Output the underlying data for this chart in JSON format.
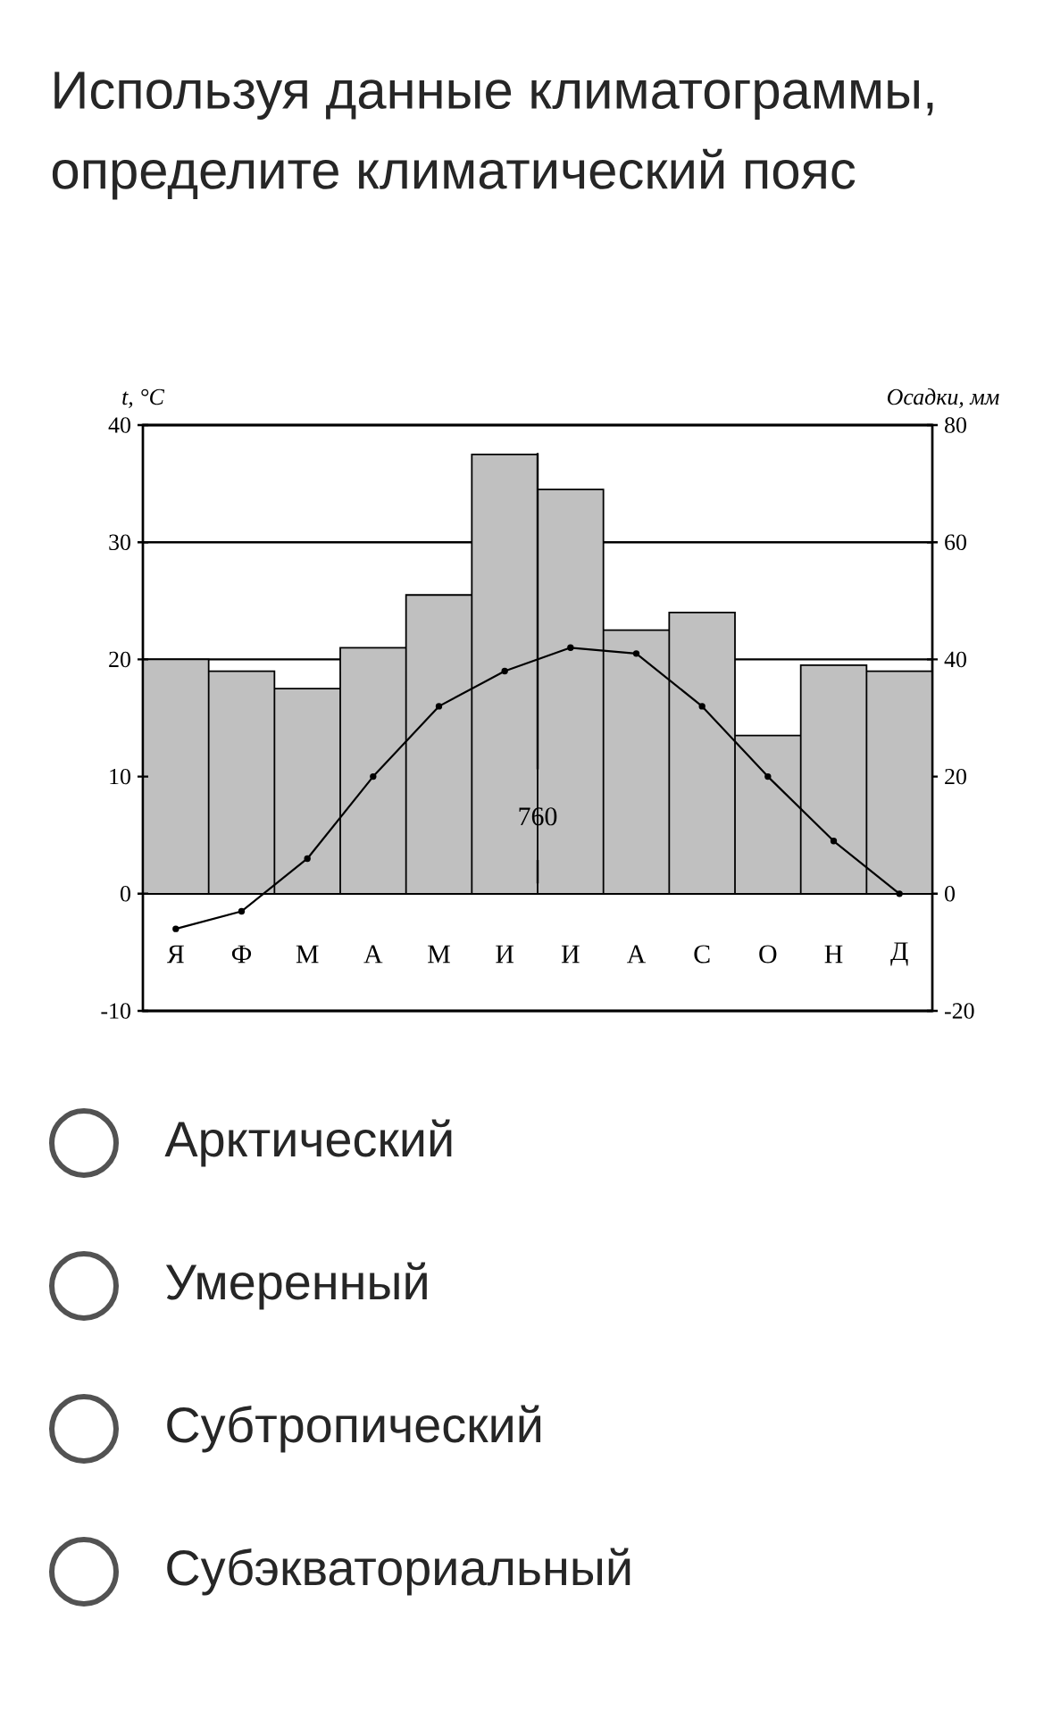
{
  "chart_data": {
    "type": "bar",
    "title": "Используя данные климатограммы, определите климатический пояс",
    "categories": [
      "Я",
      "Ф",
      "М",
      "А",
      "М",
      "И",
      "И",
      "А",
      "С",
      "О",
      "Н",
      "Д"
    ],
    "series": [
      {
        "axis": "y2",
        "color": "#c0c0c0",
        "values": [
          40,
          38,
          35,
          42,
          51,
          75,
          69,
          45,
          48,
          27,
          39,
          38
        ]
      },
      {
        "type": "line",
        "color": "#000000",
        "values": [
          -3,
          -1.5,
          3,
          10,
          16,
          19,
          21,
          20.5,
          16,
          10,
          4.5,
          0
        ]
      }
    ],
    "ylabel": "t, °C",
    "y2label": "Осадки, мм",
    "ylim": [
      -10,
      40
    ],
    "yticks": [
      -10,
      0,
      10,
      20,
      30,
      40
    ],
    "y2lim": [
      -20,
      80
    ],
    "y2ticks": [
      -20,
      0,
      20,
      40,
      60,
      80
    ],
    "grid": true,
    "marker": "circle",
    "annotations": [
      "760",
      "Арктический",
      "Умеренный",
      "Субтропический",
      "Субэкваториальный"
    ]
  }
}
